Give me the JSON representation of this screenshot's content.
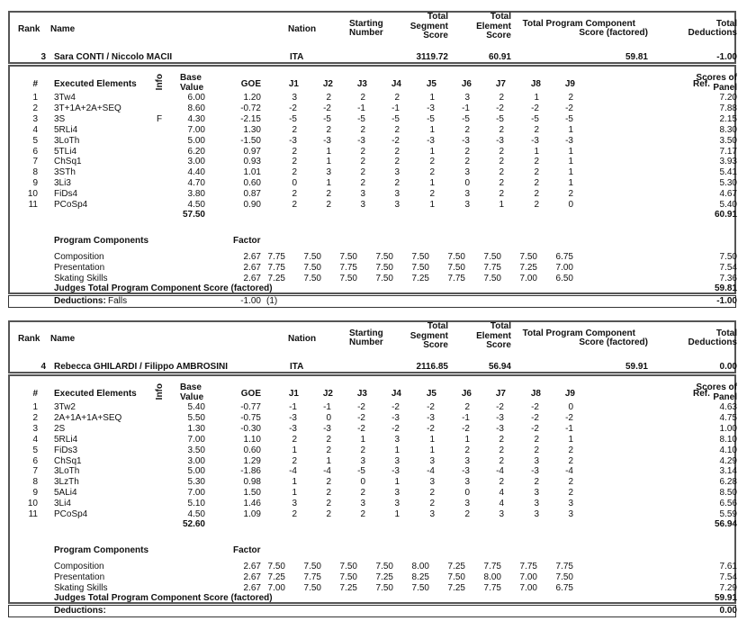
{
  "labels": {
    "rank": "Rank",
    "name": "Name",
    "nation": "Nation",
    "starting_number": [
      "Starting",
      "Number"
    ],
    "total_segment_score": [
      "Total",
      "Segment",
      "Score"
    ],
    "total_element_score": [
      "Total",
      "Element",
      "Score"
    ],
    "total_pcs": [
      "Total Program Component",
      "Score (factored)"
    ],
    "total_deductions": [
      "Total",
      "Deductions"
    ],
    "num": "#",
    "executed_elements": "Executed Elements",
    "info": "Info",
    "base_value": [
      "Base",
      "Value"
    ],
    "goe": "GOE",
    "judges": [
      "J1",
      "J2",
      "J3",
      "J4",
      "J5",
      "J6",
      "J7",
      "J8",
      "J9"
    ],
    "ref": "Ref.",
    "scores_of_panel": [
      "Scores of",
      "Panel"
    ],
    "program_components": "Program Components",
    "factor": "Factor",
    "judges_total_pcs": "Judges Total Program Component Score (factored)",
    "deductions": "Deductions:"
  },
  "skaters": [
    {
      "rank": "3",
      "name": "Sara CONTI / Niccolo MACII",
      "nation": "ITA",
      "starting_number": "3",
      "tss": "119.72",
      "tes": "60.91",
      "pcs": "59.81",
      "deductions": "-1.00",
      "elements": [
        {
          "num": "1",
          "name": "3Tw4",
          "info": "",
          "base": "6.00",
          "goe": "1.20",
          "judges": [
            "3",
            "2",
            "2",
            "2",
            "1",
            "3",
            "2",
            "1",
            "2"
          ],
          "panel": "7.20"
        },
        {
          "num": "2",
          "name": "3T+1A+2A+SEQ",
          "info": "",
          "base": "8.60",
          "goe": "-0.72",
          "judges": [
            "-2",
            "-2",
            "-1",
            "-1",
            "-3",
            "-1",
            "-2",
            "-2",
            "-2"
          ],
          "panel": "7.88"
        },
        {
          "num": "3",
          "name": "3S",
          "info": "F",
          "base": "4.30",
          "goe": "-2.15",
          "judges": [
            "-5",
            "-5",
            "-5",
            "-5",
            "-5",
            "-5",
            "-5",
            "-5",
            "-5"
          ],
          "panel": "2.15"
        },
        {
          "num": "4",
          "name": "5RLi4",
          "info": "",
          "base": "7.00",
          "goe": "1.30",
          "judges": [
            "2",
            "2",
            "2",
            "2",
            "1",
            "2",
            "2",
            "2",
            "1"
          ],
          "panel": "8.30"
        },
        {
          "num": "5",
          "name": "3LoTh",
          "info": "",
          "base": "5.00",
          "goe": "-1.50",
          "judges": [
            "-3",
            "-3",
            "-3",
            "-2",
            "-3",
            "-3",
            "-3",
            "-3",
            "-3"
          ],
          "panel": "3.50"
        },
        {
          "num": "6",
          "name": "5TLi4",
          "info": "",
          "base": "6.20",
          "goe": "0.97",
          "judges": [
            "2",
            "1",
            "2",
            "2",
            "1",
            "2",
            "2",
            "1",
            "1"
          ],
          "panel": "7.17"
        },
        {
          "num": "7",
          "name": "ChSq1",
          "info": "",
          "base": "3.00",
          "goe": "0.93",
          "judges": [
            "2",
            "1",
            "2",
            "2",
            "2",
            "2",
            "2",
            "2",
            "1"
          ],
          "panel": "3.93"
        },
        {
          "num": "8",
          "name": "3STh",
          "info": "",
          "base": "4.40",
          "goe": "1.01",
          "judges": [
            "2",
            "3",
            "2",
            "3",
            "2",
            "3",
            "2",
            "2",
            "1"
          ],
          "panel": "5.41"
        },
        {
          "num": "9",
          "name": "3Li3",
          "info": "",
          "base": "4.70",
          "goe": "0.60",
          "judges": [
            "0",
            "1",
            "2",
            "2",
            "1",
            "0",
            "2",
            "2",
            "1"
          ],
          "panel": "5.30"
        },
        {
          "num": "10",
          "name": "FiDs4",
          "info": "",
          "base": "3.80",
          "goe": "0.87",
          "judges": [
            "2",
            "2",
            "3",
            "3",
            "2",
            "3",
            "2",
            "2",
            "2"
          ],
          "panel": "4.67"
        },
        {
          "num": "11",
          "name": "PCoSp4",
          "info": "",
          "base": "4.50",
          "goe": "0.90",
          "judges": [
            "2",
            "2",
            "3",
            "3",
            "1",
            "3",
            "1",
            "2",
            "0"
          ],
          "panel": "5.40"
        }
      ],
      "base_total": "57.50",
      "tes_total": "60.91",
      "components": [
        {
          "name": "Composition",
          "factor": "2.67",
          "judges": [
            "7.75",
            "7.50",
            "7.50",
            "7.50",
            "7.50",
            "7.50",
            "7.50",
            "7.50",
            "6.75"
          ],
          "panel": "7.50"
        },
        {
          "name": "Presentation",
          "factor": "2.67",
          "judges": [
            "7.75",
            "7.50",
            "7.75",
            "7.50",
            "7.50",
            "7.50",
            "7.75",
            "7.25",
            "7.00"
          ],
          "panel": "7.54"
        },
        {
          "name": "Skating Skills",
          "factor": "2.67",
          "judges": [
            "7.25",
            "7.50",
            "7.50",
            "7.50",
            "7.25",
            "7.75",
            "7.50",
            "7.00",
            "6.50"
          ],
          "panel": "7.36"
        }
      ],
      "pcs_total": "59.81",
      "deduction_row": {
        "type": "Falls",
        "value": "-1.00",
        "count": "(1)",
        "total": "-1.00"
      }
    },
    {
      "rank": "4",
      "name": "Rebecca GHILARDI / Filippo AMBROSINI",
      "nation": "ITA",
      "starting_number": "2",
      "tss": "116.85",
      "tes": "56.94",
      "pcs": "59.91",
      "deductions": "0.00",
      "elements": [
        {
          "num": "1",
          "name": "3Tw2",
          "info": "",
          "base": "5.40",
          "goe": "-0.77",
          "judges": [
            "-1",
            "-1",
            "-2",
            "-2",
            "-2",
            "2",
            "-2",
            "-2",
            "0"
          ],
          "panel": "4.63"
        },
        {
          "num": "2",
          "name": "2A+1A+1A+SEQ",
          "info": "",
          "base": "5.50",
          "goe": "-0.75",
          "judges": [
            "-3",
            "0",
            "-2",
            "-3",
            "-3",
            "-1",
            "-3",
            "-2",
            "-2"
          ],
          "panel": "4.75"
        },
        {
          "num": "3",
          "name": "2S",
          "info": "",
          "base": "1.30",
          "goe": "-0.30",
          "judges": [
            "-3",
            "-3",
            "-2",
            "-2",
            "-2",
            "-2",
            "-3",
            "-2",
            "-1"
          ],
          "panel": "1.00"
        },
        {
          "num": "4",
          "name": "5RLi4",
          "info": "",
          "base": "7.00",
          "goe": "1.10",
          "judges": [
            "2",
            "2",
            "1",
            "3",
            "1",
            "1",
            "2",
            "2",
            "1"
          ],
          "panel": "8.10"
        },
        {
          "num": "5",
          "name": "FiDs3",
          "info": "",
          "base": "3.50",
          "goe": "0.60",
          "judges": [
            "1",
            "2",
            "2",
            "1",
            "1",
            "2",
            "2",
            "2",
            "2"
          ],
          "panel": "4.10"
        },
        {
          "num": "6",
          "name": "ChSq1",
          "info": "",
          "base": "3.00",
          "goe": "1.29",
          "judges": [
            "2",
            "1",
            "3",
            "3",
            "3",
            "3",
            "2",
            "3",
            "2"
          ],
          "panel": "4.29"
        },
        {
          "num": "7",
          "name": "3LoTh",
          "info": "",
          "base": "5.00",
          "goe": "-1.86",
          "judges": [
            "-4",
            "-4",
            "-5",
            "-3",
            "-4",
            "-3",
            "-4",
            "-3",
            "-4"
          ],
          "panel": "3.14"
        },
        {
          "num": "8",
          "name": "3LzTh",
          "info": "",
          "base": "5.30",
          "goe": "0.98",
          "judges": [
            "1",
            "2",
            "0",
            "1",
            "3",
            "3",
            "2",
            "2",
            "2"
          ],
          "panel": "6.28"
        },
        {
          "num": "9",
          "name": "5ALi4",
          "info": "",
          "base": "7.00",
          "goe": "1.50",
          "judges": [
            "1",
            "2",
            "2",
            "3",
            "2",
            "0",
            "4",
            "3",
            "2"
          ],
          "panel": "8.50"
        },
        {
          "num": "10",
          "name": "3Li4",
          "info": "",
          "base": "5.10",
          "goe": "1.46",
          "judges": [
            "3",
            "2",
            "3",
            "3",
            "2",
            "3",
            "4",
            "3",
            "3"
          ],
          "panel": "6.56"
        },
        {
          "num": "11",
          "name": "PCoSp4",
          "info": "",
          "base": "4.50",
          "goe": "1.09",
          "judges": [
            "2",
            "2",
            "2",
            "1",
            "3",
            "2",
            "3",
            "3",
            "3"
          ],
          "panel": "5.59"
        }
      ],
      "base_total": "52.60",
      "tes_total": "56.94",
      "components": [
        {
          "name": "Composition",
          "factor": "2.67",
          "judges": [
            "7.50",
            "7.50",
            "7.50",
            "7.50",
            "8.00",
            "7.25",
            "7.75",
            "7.75",
            "7.75"
          ],
          "panel": "7.61"
        },
        {
          "name": "Presentation",
          "factor": "2.67",
          "judges": [
            "7.25",
            "7.75",
            "7.50",
            "7.25",
            "8.25",
            "7.50",
            "8.00",
            "7.00",
            "7.50"
          ],
          "panel": "7.54"
        },
        {
          "name": "Skating Skills",
          "factor": "2.67",
          "judges": [
            "7.00",
            "7.50",
            "7.25",
            "7.50",
            "7.50",
            "7.25",
            "7.75",
            "7.00",
            "6.75"
          ],
          "panel": "7.29"
        }
      ],
      "pcs_total": "59.91",
      "deduction_row": {
        "type": "",
        "value": "",
        "count": "",
        "total": "0.00"
      }
    }
  ]
}
